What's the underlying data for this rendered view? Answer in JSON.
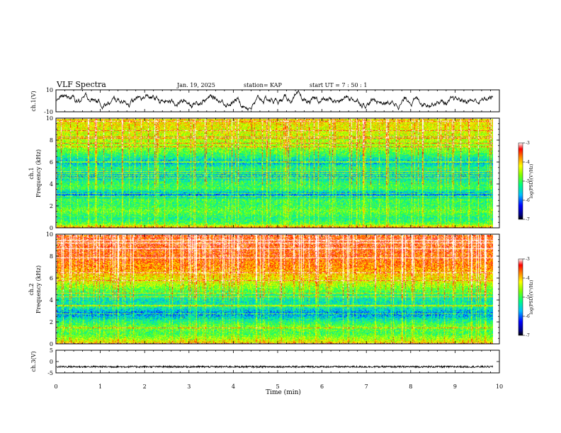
{
  "header": {
    "title": "VLF Spectra",
    "date": "Jan. 19, 2025",
    "station": "station= KAP",
    "start": "start  UT =   7 : 50 : 1"
  },
  "colorbar": {
    "label": "log(PSD)(V²/Hz)",
    "ticks": [
      "-3",
      "-4",
      "-5",
      "-6",
      "-7"
    ]
  },
  "chart_data": [
    {
      "type": "line",
      "title": "VLF Spectra",
      "ylabel": "ch.1(V)",
      "ylim": [
        -10,
        10
      ],
      "yticks": [
        "10",
        "-10"
      ],
      "x_range_min": [
        0,
        9.85
      ],
      "description_of_series": "noisy waveform, amplitude about ±5 V"
    },
    {
      "type": "heatmap",
      "ylabel": "ch.1\nFrequency (kHz)",
      "ylim": [
        0,
        10
      ],
      "yticks": [
        "0",
        "2",
        "4",
        "6",
        "8",
        "10"
      ],
      "xlim": [
        0,
        10
      ],
      "zlabel": "log(PSD)(V²/Hz)",
      "zlim": [
        -7,
        -3
      ],
      "band_profile_khz": [
        {
          "f": 0.0,
          "z": -3.6
        },
        {
          "f": 0.4,
          "z": -4.9
        },
        {
          "f": 0.9,
          "z": -5.2
        },
        {
          "f": 1.6,
          "z": -4.8
        },
        {
          "f": 2.1,
          "z": -5.1
        },
        {
          "f": 2.6,
          "z": -5.0
        },
        {
          "f": 3.1,
          "z": -5.9
        },
        {
          "f": 3.6,
          "z": -5.0
        },
        {
          "f": 4.2,
          "z": -5.1
        },
        {
          "f": 4.8,
          "z": -5.7
        },
        {
          "f": 5.5,
          "z": -5.1
        },
        {
          "f": 6.0,
          "z": -5.7
        },
        {
          "f": 6.8,
          "z": -5.0
        },
        {
          "f": 7.5,
          "z": -4.6
        },
        {
          "f": 8.5,
          "z": -4.4
        },
        {
          "f": 9.5,
          "z": -4.2
        },
        {
          "f": 10.0,
          "z": -4.1
        }
      ]
    },
    {
      "type": "heatmap",
      "ylabel": "ch.2\nFrequency (kHz)",
      "ylim": [
        0,
        10
      ],
      "yticks": [
        "0",
        "2",
        "4",
        "6",
        "8",
        "10"
      ],
      "xlim": [
        0,
        10
      ],
      "zlabel": "log(PSD)(V²/Hz)",
      "zlim": [
        -7,
        -3
      ],
      "band_profile_khz": [
        {
          "f": 0.0,
          "z": -4.0
        },
        {
          "f": 0.5,
          "z": -4.6
        },
        {
          "f": 1.0,
          "z": -5.0
        },
        {
          "f": 1.6,
          "z": -4.8
        },
        {
          "f": 2.2,
          "z": -5.3
        },
        {
          "f": 2.8,
          "z": -5.9
        },
        {
          "f": 3.4,
          "z": -5.3
        },
        {
          "f": 4.0,
          "z": -5.4
        },
        {
          "f": 4.6,
          "z": -5.1
        },
        {
          "f": 5.2,
          "z": -4.7
        },
        {
          "f": 6.0,
          "z": -4.2
        },
        {
          "f": 7.0,
          "z": -3.8
        },
        {
          "f": 8.0,
          "z": -3.6
        },
        {
          "f": 9.0,
          "z": -3.5
        },
        {
          "f": 10.0,
          "z": -3.5
        }
      ]
    },
    {
      "type": "line",
      "ylabel": "ch.3(V)",
      "ylim": [
        -5,
        5
      ],
      "yticks": [
        "5",
        "0",
        "-5"
      ],
      "xlabel": "Time (min)",
      "xlim": [
        0,
        10
      ],
      "xticks": [
        "0",
        "1",
        "2",
        "3",
        "4",
        "5",
        "6",
        "7",
        "8",
        "9",
        "10"
      ],
      "description_of_series": "dense oscillation around -2.3 V with ±0.4 V amplitude"
    }
  ]
}
